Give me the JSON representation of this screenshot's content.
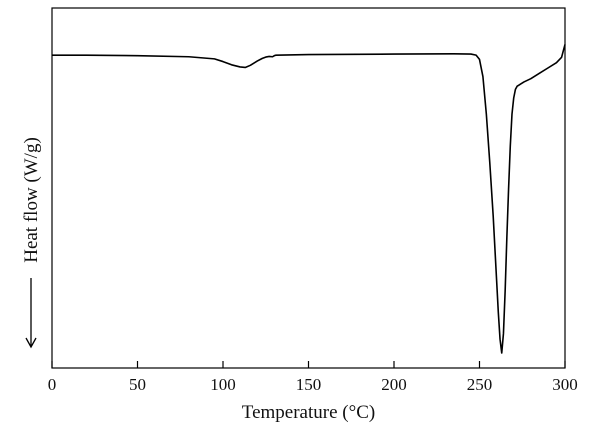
{
  "chart_data": {
    "type": "line",
    "title": "",
    "xlabel": "Temperature (°C)",
    "ylabel": "Heat flow (W/g)",
    "ylabel_arrow": "down",
    "xlim": [
      0,
      300
    ],
    "xticks": [
      0,
      50,
      100,
      150,
      200,
      250,
      300
    ],
    "yticks_shown": false,
    "grid": false,
    "legend": "none",
    "line_color": "#000000",
    "series": [
      {
        "x": [
          0,
          20,
          50,
          80,
          95,
          100,
          105,
          110,
          113,
          116,
          120,
          123,
          125,
          127,
          129,
          130,
          131,
          150,
          200,
          235,
          245,
          248,
          250,
          252,
          254,
          256,
          258,
          259,
          260,
          261,
          262,
          263,
          264,
          265,
          266,
          267,
          268,
          269,
          270,
          271,
          272,
          273,
          274,
          276,
          280,
          285,
          290,
          295,
          298,
          300
        ],
        "y": [
          0.0,
          0.0,
          -0.05,
          -0.15,
          -0.35,
          -0.6,
          -0.9,
          -1.1,
          -1.15,
          -0.95,
          -0.55,
          -0.3,
          -0.18,
          -0.12,
          -0.15,
          -0.05,
          0.0,
          0.05,
          0.1,
          0.12,
          0.1,
          0.0,
          -0.4,
          -2.0,
          -5.5,
          -10.0,
          -15.0,
          -18.0,
          -21.0,
          -24.0,
          -26.5,
          -27.8,
          -26.0,
          -22.0,
          -17.0,
          -12.5,
          -8.5,
          -5.5,
          -4.0,
          -3.2,
          -2.9,
          -2.8,
          -2.7,
          -2.5,
          -2.2,
          -1.7,
          -1.2,
          -0.7,
          -0.2,
          1.0
        ]
      }
    ],
    "ylim": [
      -29.2,
      4.4
    ]
  }
}
